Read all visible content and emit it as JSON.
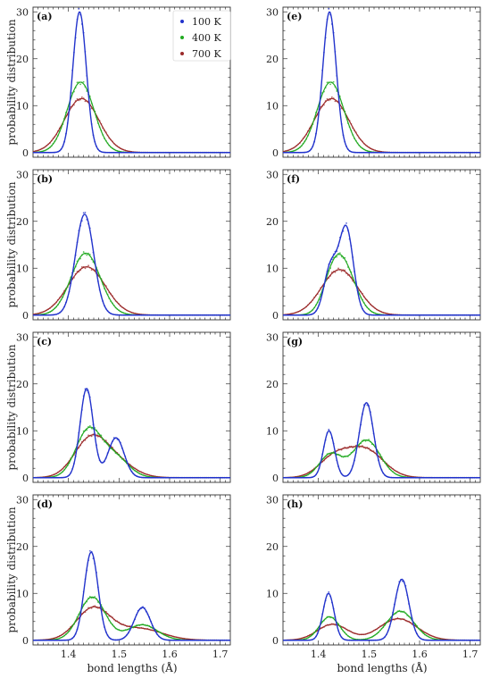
{
  "figure": {
    "xlabel": "bond lengths (Å)",
    "ylabel": "probability distribution",
    "legend": {
      "placement": "top-right of panel (a)",
      "entries": [
        {
          "label": "100 K",
          "color": "#2233cc"
        },
        {
          "label": "400 K",
          "color": "#22aa22"
        },
        {
          "label": "700 K",
          "color": "#9b2a2a"
        }
      ]
    }
  },
  "chart_data": [
    {
      "panel": "(a)",
      "type": "line",
      "xlim": [
        1.33,
        1.72
      ],
      "ylim": [
        -1,
        31
      ],
      "xticks": [
        1.4,
        1.5,
        1.6,
        1.7
      ],
      "yticks": [
        0,
        10,
        20,
        30
      ],
      "series": [
        {
          "name": "100 K",
          "color": "#2233cc",
          "components": [
            {
              "amp": 30,
              "mu": 1.422,
              "sigma": 0.0133
            }
          ]
        },
        {
          "name": "400 K",
          "color": "#22aa22",
          "components": [
            {
              "amp": 15,
              "mu": 1.424,
              "sigma": 0.0265
            }
          ]
        },
        {
          "name": "700 K",
          "color": "#9b2a2a",
          "components": [
            {
              "amp": 11.5,
              "mu": 1.426,
              "sigma": 0.034
            }
          ]
        }
      ]
    },
    {
      "panel": "(b)",
      "type": "line",
      "xlim": [
        1.33,
        1.72
      ],
      "ylim": [
        -1,
        31
      ],
      "xticks": [
        1.4,
        1.5,
        1.6,
        1.7
      ],
      "yticks": [
        0,
        10,
        20,
        30
      ],
      "series": [
        {
          "name": "100 K",
          "color": "#2233cc",
          "components": [
            {
              "amp": 21.5,
              "mu": 1.432,
              "sigma": 0.018
            }
          ]
        },
        {
          "name": "400 K",
          "color": "#22aa22",
          "components": [
            {
              "amp": 13.2,
              "mu": 1.434,
              "sigma": 0.029
            }
          ]
        },
        {
          "name": "700 K",
          "color": "#9b2a2a",
          "components": [
            {
              "amp": 10.3,
              "mu": 1.436,
              "sigma": 0.037
            }
          ]
        }
      ]
    },
    {
      "panel": "(c)",
      "type": "line",
      "xlim": [
        1.33,
        1.72
      ],
      "ylim": [
        -1,
        31
      ],
      "xticks": [
        1.4,
        1.5,
        1.6,
        1.7
      ],
      "yticks": [
        0,
        10,
        20,
        30
      ],
      "series": [
        {
          "name": "100 K",
          "color": "#2233cc",
          "components": [
            {
              "amp": 19,
              "mu": 1.436,
              "sigma": 0.013
            },
            {
              "amp": 8.5,
              "mu": 1.494,
              "sigma": 0.016
            }
          ]
        },
        {
          "name": "400 K",
          "color": "#22aa22",
          "components": [
            {
              "amp": 9.8,
              "mu": 1.439,
              "sigma": 0.025
            },
            {
              "amp": 4.5,
              "mu": 1.49,
              "sigma": 0.028
            }
          ]
        },
        {
          "name": "700 K",
          "color": "#9b2a2a",
          "components": [
            {
              "amp": 7.5,
              "mu": 1.442,
              "sigma": 0.032
            },
            {
              "amp": 3.5,
              "mu": 1.49,
              "sigma": 0.036
            }
          ]
        }
      ]
    },
    {
      "panel": "(d)",
      "type": "line",
      "xlim": [
        1.33,
        1.72
      ],
      "ylim": [
        -1,
        31
      ],
      "xticks": [
        1.4,
        1.5,
        1.6,
        1.7
      ],
      "yticks": [
        0,
        10,
        20,
        30
      ],
      "series": [
        {
          "name": "100 K",
          "color": "#2233cc",
          "components": [
            {
              "amp": 18.8,
              "mu": 1.445,
              "sigma": 0.0135
            },
            {
              "amp": 7.0,
              "mu": 1.546,
              "sigma": 0.016
            }
          ]
        },
        {
          "name": "400 K",
          "color": "#22aa22",
          "components": [
            {
              "amp": 9.2,
              "mu": 1.447,
              "sigma": 0.026
            },
            {
              "amp": 3.3,
              "mu": 1.546,
              "sigma": 0.03
            }
          ]
        },
        {
          "name": "700 K",
          "color": "#9b2a2a",
          "components": [
            {
              "amp": 6.8,
              "mu": 1.449,
              "sigma": 0.033
            },
            {
              "amp": 2.5,
              "mu": 1.54,
              "sigma": 0.045
            }
          ]
        }
      ]
    },
    {
      "panel": "(e)",
      "type": "line",
      "xlim": [
        1.33,
        1.72
      ],
      "ylim": [
        -1,
        31
      ],
      "xticks": [
        1.4,
        1.5,
        1.6,
        1.7
      ],
      "yticks": [
        0,
        10,
        20,
        30
      ],
      "series": [
        {
          "name": "100 K",
          "color": "#2233cc",
          "components": [
            {
              "amp": 30,
              "mu": 1.422,
              "sigma": 0.0133
            }
          ]
        },
        {
          "name": "400 K",
          "color": "#22aa22",
          "components": [
            {
              "amp": 15,
              "mu": 1.424,
              "sigma": 0.0265
            }
          ]
        },
        {
          "name": "700 K",
          "color": "#9b2a2a",
          "components": [
            {
              "amp": 11.5,
              "mu": 1.426,
              "sigma": 0.034
            }
          ]
        }
      ]
    },
    {
      "panel": "(f)",
      "type": "line",
      "xlim": [
        1.33,
        1.72
      ],
      "ylim": [
        -1,
        31
      ],
      "xticks": [
        1.4,
        1.5,
        1.6,
        1.7
      ],
      "yticks": [
        0,
        10,
        20,
        30
      ],
      "series": [
        {
          "name": "100 K",
          "color": "#2233cc",
          "components": [
            {
              "amp": 10,
              "mu": 1.424,
              "sigma": 0.013
            },
            {
              "amp": 18.5,
              "mu": 1.455,
              "sigma": 0.014
            }
          ]
        },
        {
          "name": "400 K",
          "color": "#22aa22",
          "components": [
            {
              "amp": 6,
              "mu": 1.428,
              "sigma": 0.02
            },
            {
              "amp": 9,
              "mu": 1.452,
              "sigma": 0.024
            }
          ]
        },
        {
          "name": "700 K",
          "color": "#9b2a2a",
          "components": [
            {
              "amp": 9.7,
              "mu": 1.442,
              "sigma": 0.036
            }
          ]
        }
      ]
    },
    {
      "panel": "(g)",
      "type": "line",
      "xlim": [
        1.33,
        1.72
      ],
      "ylim": [
        -1,
        31
      ],
      "xticks": [
        1.4,
        1.5,
        1.6,
        1.7
      ],
      "yticks": [
        0,
        10,
        20,
        30
      ],
      "series": [
        {
          "name": "100 K",
          "color": "#2233cc",
          "components": [
            {
              "amp": 10,
              "mu": 1.421,
              "sigma": 0.011
            },
            {
              "amp": 16,
              "mu": 1.495,
              "sigma": 0.014
            }
          ]
        },
        {
          "name": "400 K",
          "color": "#22aa22",
          "components": [
            {
              "amp": 5,
              "mu": 1.424,
              "sigma": 0.022
            },
            {
              "amp": 8,
              "mu": 1.495,
              "sigma": 0.027
            }
          ]
        },
        {
          "name": "700 K",
          "color": "#9b2a2a",
          "components": [
            {
              "amp": 4,
              "mu": 1.43,
              "sigma": 0.03
            },
            {
              "amp": 6,
              "mu": 1.492,
              "sigma": 0.036
            }
          ]
        }
      ]
    },
    {
      "panel": "(h)",
      "type": "line",
      "xlim": [
        1.33,
        1.72
      ],
      "ylim": [
        -1,
        31
      ],
      "xticks": [
        1.4,
        1.5,
        1.6,
        1.7
      ],
      "yticks": [
        0,
        10,
        20,
        30
      ],
      "series": [
        {
          "name": "100 K",
          "color": "#2233cc",
          "components": [
            {
              "amp": 10,
              "mu": 1.42,
              "sigma": 0.011
            },
            {
              "amp": 13,
              "mu": 1.565,
              "sigma": 0.014
            }
          ]
        },
        {
          "name": "400 K",
          "color": "#22aa22",
          "components": [
            {
              "amp": 5,
              "mu": 1.422,
              "sigma": 0.02
            },
            {
              "amp": 6.2,
              "mu": 1.562,
              "sigma": 0.027
            }
          ]
        },
        {
          "name": "700 K",
          "color": "#9b2a2a",
          "components": [
            {
              "amp": 3.4,
              "mu": 1.428,
              "sigma": 0.03
            },
            {
              "amp": 4.6,
              "mu": 1.558,
              "sigma": 0.037
            }
          ]
        }
      ]
    }
  ]
}
